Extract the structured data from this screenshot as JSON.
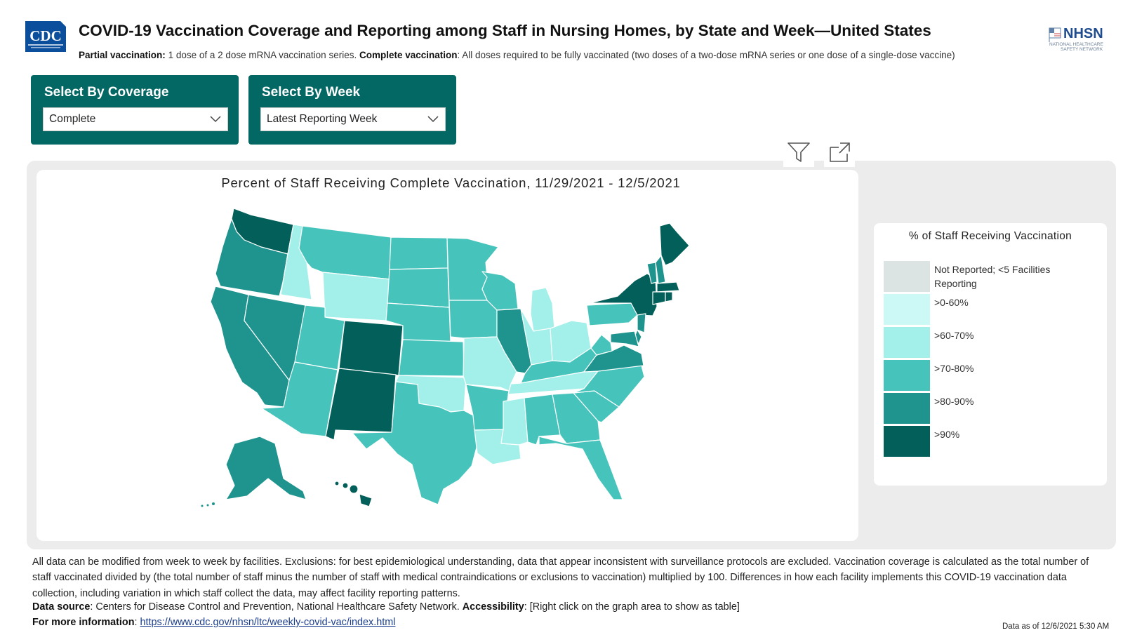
{
  "header": {
    "cdc_logo_text": "CDC",
    "title": "COVID-19 Vaccination Coverage and Reporting among Staff in Nursing Homes, by State and Week—United States",
    "partial_label": "Partial vaccination:",
    "partial_text": "1 dose of a 2 dose mRNA vaccination series.",
    "complete_label": "Complete vaccination",
    "complete_text": ":  All doses required to be fully vaccinated (two doses of a two-dose mRNA series or one dose of a single-dose vaccine)",
    "nhsn_logo_text": "NHSN",
    "nhsn_logo_sub1": "NATIONAL HEALTHCARE",
    "nhsn_logo_sub2": "SAFETY NETWORK"
  },
  "slicers": {
    "coverage": {
      "title": "Select By Coverage",
      "value": "Complete"
    },
    "week": {
      "title": "Select By Week",
      "value": "Latest Reporting Week"
    }
  },
  "map": {
    "title": "Percent of Staff Receiving Complete Vaccination, 11/29/2021 - 12/5/2021",
    "states": {
      "WA": ">90%",
      "OR": ">80-90%",
      "CA": ">80-90%",
      "NV": ">80-90%",
      "ID": ">60-70%",
      "MT": ">70-80%",
      "WY": ">60-70%",
      "UT": ">70-80%",
      "AZ": ">70-80%",
      "CO": ">90%",
      "NM": ">90%",
      "ND": ">70-80%",
      "SD": ">70-80%",
      "NE": ">70-80%",
      "KS": ">70-80%",
      "OK": ">60-70%",
      "TX": ">70-80%",
      "MN": ">70-80%",
      "IA": ">70-80%",
      "MO": ">60-70%",
      "AR": ">70-80%",
      "LA": ">60-70%",
      "WI": ">70-80%",
      "IL": ">80-90%",
      "MI": ">60-70%",
      "IN": ">60-70%",
      "OH": ">60-70%",
      "KY": ">70-80%",
      "TN": ">60-70%",
      "MS": ">60-70%",
      "AL": ">70-80%",
      "GA": ">70-80%",
      "FL": ">70-80%",
      "SC": ">70-80%",
      "NC": ">70-80%",
      "VA": ">80-90%",
      "WV": ">70-80%",
      "PA": ">70-80%",
      "NY": ">90%",
      "VT": ">80-90%",
      "NH": ">80-90%",
      "ME": ">90%",
      "MA": ">90%",
      "CT": ">90%",
      "RI": ">90%",
      "NJ": ">80-90%",
      "DE": ">80-90%",
      "MD": ">80-90%",
      "AK": ">80-90%",
      "HI": ">90%"
    }
  },
  "legend": {
    "title": "% of Staff Receiving Vaccination",
    "items": [
      {
        "label": "Not Reported; <5 Facilities Reporting",
        "color": "#dce3e3"
      },
      {
        "label": ">0-60%",
        "color": "#ccf9f6"
      },
      {
        "label": ">60-70%",
        "color": "#a3f0ea"
      },
      {
        "label": ">70-80%",
        "color": "#46c4bc"
      },
      {
        "label": ">80-90%",
        "color": "#1f948e"
      },
      {
        "label": ">90%",
        "color": "#035f59"
      }
    ]
  },
  "footer": {
    "notes": "All data can be modified from week to week by facilities. Exclusions: for best epidemiological understanding, data that appear inconsistent with surveillance protocols are excluded. Vaccination coverage is calculated as the total number of staff vaccinated divided by (the total number of staff minus the number of staff with medical contraindications or exclusions  to vaccination) multiplied by 100. Differences  in how each facility implements this COVID-19 vaccination data collection, including variation in which staff collect the data, may affect facility reporting patterns.",
    "source_label": "Data source",
    "source_text": ": Centers for Disease Control and Prevention, National Healthcare Safety Network.",
    "access_label": "Accessibility",
    "access_text": ": [Right click on the graph area to show as table]",
    "info_label": "For more information",
    "info_colon": ": ",
    "info_link": "https://www.cdc.gov/nhsn/ltc/weekly-covid-vac/index.html",
    "data_asof": "Data as of 12/6/2021 5:30 AM"
  },
  "colors": {
    "brand_teal": "#036864",
    "map_bg": "#ececec",
    "link": "#1a3c8c",
    "state_border": "#ffffff"
  }
}
